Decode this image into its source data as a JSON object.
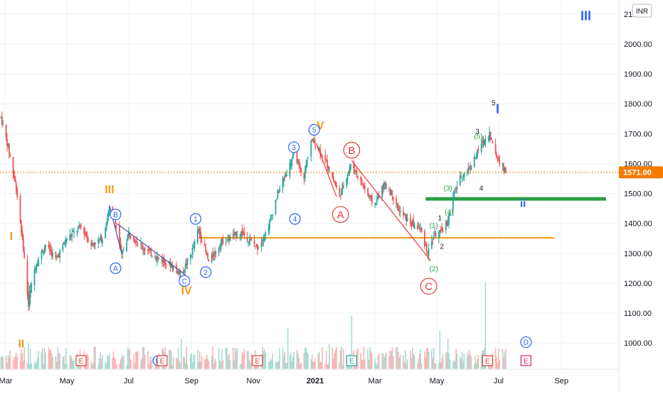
{
  "currency_badge": "INR",
  "price_label": "1571.00",
  "colors": {
    "up": "#26a69a",
    "down": "#ef5350",
    "blue_wave": "#2962ff",
    "orange_wave": "#f59b15",
    "red_wave": "#e53935",
    "green_wave": "#2e9e44",
    "black_wave": "#222222",
    "support_line": "#2e9e44",
    "price_line": "#f57c00",
    "price_label_bg": "#f57c00",
    "grid": "#f0f3fa"
  },
  "chart_data": {
    "type": "candlestick",
    "title": "",
    "ylim": [
      910,
      2160
    ],
    "y_ticks": [
      "2100.00",
      "2000.00",
      "1900.00",
      "1800.00",
      "1700.00",
      "1600.00",
      "1500.00",
      "1400.00",
      "1300.00",
      "1200.00",
      "1100.00",
      "1000.00"
    ],
    "y_tick_values": [
      2100,
      2000,
      1900,
      1800,
      1700,
      1600,
      1500,
      1400,
      1300,
      1200,
      1100,
      1000
    ],
    "x_ticks": [
      {
        "label": "Mar",
        "date": "2020-03-01"
      },
      {
        "label": "May",
        "date": "2020-05-01"
      },
      {
        "label": "Jul",
        "date": "2020-07-01"
      },
      {
        "label": "Sep",
        "date": "2020-09-01"
      },
      {
        "label": "Nov",
        "date": "2020-11-01"
      },
      {
        "label": "2021",
        "date": "2021-01-01"
      },
      {
        "label": "Mar",
        "date": "2021-03-01"
      },
      {
        "label": "May",
        "date": "2021-05-01"
      },
      {
        "label": "Jul",
        "date": "2021-07-01"
      },
      {
        "label": "Sep",
        "date": "2021-09-01"
      }
    ],
    "current_price": 1571,
    "price_path": [
      [
        "2020-02-25",
        1770
      ],
      [
        "2020-03-05",
        1640
      ],
      [
        "2020-03-12",
        1520
      ],
      [
        "2020-03-19",
        1320
      ],
      [
        "2020-03-24",
        1130
      ],
      [
        "2020-03-31",
        1260
      ],
      [
        "2020-04-10",
        1330
      ],
      [
        "2020-04-20",
        1280
      ],
      [
        "2020-05-01",
        1350
      ],
      [
        "2020-05-15",
        1390
      ],
      [
        "2020-05-25",
        1330
      ],
      [
        "2020-06-05",
        1350
      ],
      [
        "2020-06-12",
        1450
      ],
      [
        "2020-06-18",
        1410
      ],
      [
        "2020-06-24",
        1290
      ],
      [
        "2020-07-01",
        1370
      ],
      [
        "2020-07-15",
        1320
      ],
      [
        "2020-08-01",
        1280
      ],
      [
        "2020-08-12",
        1260
      ],
      [
        "2020-08-22",
        1230
      ],
      [
        "2020-09-01",
        1300
      ],
      [
        "2020-09-08",
        1380
      ],
      [
        "2020-09-18",
        1270
      ],
      [
        "2020-10-01",
        1340
      ],
      [
        "2020-10-20",
        1370
      ],
      [
        "2020-11-05",
        1320
      ],
      [
        "2020-11-15",
        1380
      ],
      [
        "2020-11-25",
        1500
      ],
      [
        "2020-12-05",
        1580
      ],
      [
        "2020-12-12",
        1640
      ],
      [
        "2020-12-20",
        1540
      ],
      [
        "2020-12-28",
        1680
      ],
      [
        "2021-01-05",
        1650
      ],
      [
        "2021-01-15",
        1580
      ],
      [
        "2021-01-25",
        1490
      ],
      [
        "2021-02-01",
        1560
      ],
      [
        "2021-02-06",
        1600
      ],
      [
        "2021-02-15",
        1540
      ],
      [
        "2021-02-28",
        1460
      ],
      [
        "2021-03-10",
        1530
      ],
      [
        "2021-03-18",
        1500
      ],
      [
        "2021-03-25",
        1440
      ],
      [
        "2021-04-05",
        1400
      ],
      [
        "2021-04-15",
        1380
      ],
      [
        "2021-04-22",
        1300
      ],
      [
        "2021-04-28",
        1360
      ],
      [
        "2021-05-05",
        1370
      ],
      [
        "2021-05-12",
        1410
      ],
      [
        "2021-05-18",
        1500
      ],
      [
        "2021-05-25",
        1560
      ],
      [
        "2021-06-01",
        1580
      ],
      [
        "2021-06-08",
        1620
      ],
      [
        "2021-06-13",
        1660
      ],
      [
        "2021-06-18",
        1680
      ],
      [
        "2021-06-22",
        1700
      ],
      [
        "2021-06-28",
        1630
      ],
      [
        "2021-07-05",
        1590
      ],
      [
        "2021-07-08",
        1571
      ]
    ],
    "volume_spikes": [
      [
        "2020-03-24",
        0.28
      ],
      [
        "2020-06-12",
        0.17
      ],
      [
        "2020-08-22",
        0.33
      ],
      [
        "2020-12-05",
        0.45
      ],
      [
        "2021-01-15",
        0.27
      ],
      [
        "2021-02-06",
        0.58
      ],
      [
        "2021-05-12",
        0.33
      ],
      [
        "2021-06-18",
        0.95
      ],
      [
        "2021-05-04",
        0.42
      ],
      [
        "2021-02-22",
        0.22
      ]
    ],
    "horizontal_lines": [
      {
        "name": "orange-level",
        "y": 1352,
        "from": "2020-09-08",
        "to": "2021-08-25",
        "color": "#f59b15",
        "width": 2
      },
      {
        "name": "green-support",
        "y": 1482,
        "from": "2021-04-20",
        "to": "2021-10-15",
        "color": "#2e9e44",
        "width": 5
      }
    ],
    "trend_lines": [
      {
        "name": "blue-line-a-c",
        "color": "#3f51b5",
        "points": [
          [
            "2020-06-12",
            1460
          ],
          [
            "2020-06-24",
            1300
          ]
        ]
      },
      {
        "name": "blue-line-b-c",
        "color": "#3f51b5",
        "points": [
          [
            "2020-06-20",
            1398
          ],
          [
            "2020-08-26",
            1228
          ]
        ]
      },
      {
        "name": "red-line-v-a",
        "color": "#e53935",
        "points": [
          [
            "2021-01-02",
            1668
          ],
          [
            "2021-01-22",
            1490
          ]
        ]
      },
      {
        "name": "red-line-b-c",
        "color": "#e53935",
        "points": [
          [
            "2021-02-06",
            1610
          ],
          [
            "2021-04-25",
            1275
          ]
        ]
      }
    ],
    "wave_labels": [
      {
        "text": "III",
        "date": "2020-06-12",
        "y": 1502,
        "color": "#f59b15",
        "style": "plain",
        "size": 16
      },
      {
        "text": "I",
        "date": "2020-03-07",
        "y": 1345,
        "color": "#f59b15",
        "style": "plain",
        "size": 16
      },
      {
        "text": "II",
        "date": "2020-03-17",
        "y": 985,
        "color": "#f59b15",
        "style": "plain",
        "size": 16
      },
      {
        "text": "IV",
        "date": "2020-08-27",
        "y": 1163,
        "color": "#f59b15",
        "style": "plain",
        "size": 16
      },
      {
        "text": "V",
        "date": "2021-01-06",
        "y": 1715,
        "color": "#f59b15",
        "style": "plain",
        "size": 16
      },
      {
        "text": "B",
        "date": "2020-06-18",
        "y": 1430,
        "color": "#2962ff",
        "style": "circle",
        "size": 10
      },
      {
        "text": "A",
        "date": "2020-06-18",
        "y": 1250,
        "color": "#2962ff",
        "style": "circle",
        "size": 10
      },
      {
        "text": "C",
        "date": "2020-08-25",
        "y": 1208,
        "color": "#2962ff",
        "style": "circle",
        "size": 10
      },
      {
        "text": "1",
        "date": "2020-09-05",
        "y": 1415,
        "color": "#2962ff",
        "style": "circle",
        "size": 10
      },
      {
        "text": "2",
        "date": "2020-09-15",
        "y": 1237,
        "color": "#2962ff",
        "style": "circle",
        "size": 10
      },
      {
        "text": "3",
        "date": "2020-12-11",
        "y": 1655,
        "color": "#2962ff",
        "style": "circle",
        "size": 10
      },
      {
        "text": "4",
        "date": "2020-12-12",
        "y": 1415,
        "color": "#2962ff",
        "style": "circle",
        "size": 10
      },
      {
        "text": "5",
        "date": "2020-12-31",
        "y": 1713,
        "color": "#2962ff",
        "style": "circle",
        "size": 10
      },
      {
        "text": "B",
        "date": "2021-02-06",
        "y": 1645,
        "color": "#e53935",
        "style": "circle",
        "size": 15
      },
      {
        "text": "A",
        "date": "2021-01-26",
        "y": 1430,
        "color": "#e53935",
        "style": "circle",
        "size": 15
      },
      {
        "text": "C",
        "date": "2021-04-23",
        "y": 1190,
        "color": "#e53935",
        "style": "circle",
        "size": 15
      },
      {
        "text": "(1)",
        "date": "2021-04-28",
        "y": 1385,
        "color": "#2e9e44",
        "style": "plain",
        "size": 10
      },
      {
        "text": "(2)",
        "date": "2021-04-28",
        "y": 1240,
        "color": "#2e9e44",
        "style": "plain",
        "size": 10
      },
      {
        "text": "(3)",
        "date": "2021-05-12",
        "y": 1510,
        "color": "#2e9e44",
        "style": "plain",
        "size": 10
      },
      {
        "text": "(4)",
        "date": "2021-05-13",
        "y": 1430,
        "color": "#2e9e44",
        "style": "plain",
        "size": 10
      },
      {
        "text": "(5)",
        "date": "2021-06-11",
        "y": 1683,
        "color": "#2e9e44",
        "style": "plain",
        "size": 10
      },
      {
        "text": "1",
        "date": "2021-05-04",
        "y": 1410,
        "color": "#222222",
        "style": "plain",
        "size": 10
      },
      {
        "text": "2",
        "date": "2021-05-06",
        "y": 1315,
        "color": "#222222",
        "style": "plain",
        "size": 10
      },
      {
        "text": "3",
        "date": "2021-06-10",
        "y": 1700,
        "color": "#222222",
        "style": "plain",
        "size": 10
      },
      {
        "text": "4",
        "date": "2021-06-14",
        "y": 1510,
        "color": "#222222",
        "style": "plain",
        "size": 10
      },
      {
        "text": "5",
        "date": "2021-06-26",
        "y": 1795,
        "color": "#222222",
        "style": "plain",
        "size": 10
      },
      {
        "text": "I",
        "date": "2021-06-30",
        "y": 1768,
        "color": "#2962ff",
        "style": "plain",
        "size": 18
      },
      {
        "text": "ii",
        "date": "2021-07-25",
        "y": 1455,
        "color": "#2962ff",
        "style": "plain",
        "size": 15
      },
      {
        "text": "III",
        "date": "2021-09-25",
        "y": 2080,
        "color": "#2962ff",
        "style": "plain",
        "size": 18
      },
      {
        "text": "D",
        "date": "2021-07-28",
        "y": 1003,
        "color": "#2962ff",
        "style": "circle",
        "size": 10
      }
    ],
    "event_markers": [
      {
        "text": "E",
        "date": "2020-05-15",
        "color": "#e53935"
      },
      {
        "text": "D",
        "date": "2020-07-30",
        "color": "#2962ff"
      },
      {
        "text": "E",
        "date": "2020-08-03",
        "color": "#e53935"
      },
      {
        "text": "E",
        "date": "2020-11-05",
        "color": "#e53935"
      },
      {
        "text": "E",
        "date": "2021-02-06",
        "color": "#26a69a"
      },
      {
        "text": "E",
        "date": "2021-06-20",
        "color": "#e53935"
      },
      {
        "text": "E",
        "date": "2021-07-28",
        "color": "#e91e63"
      }
    ]
  }
}
